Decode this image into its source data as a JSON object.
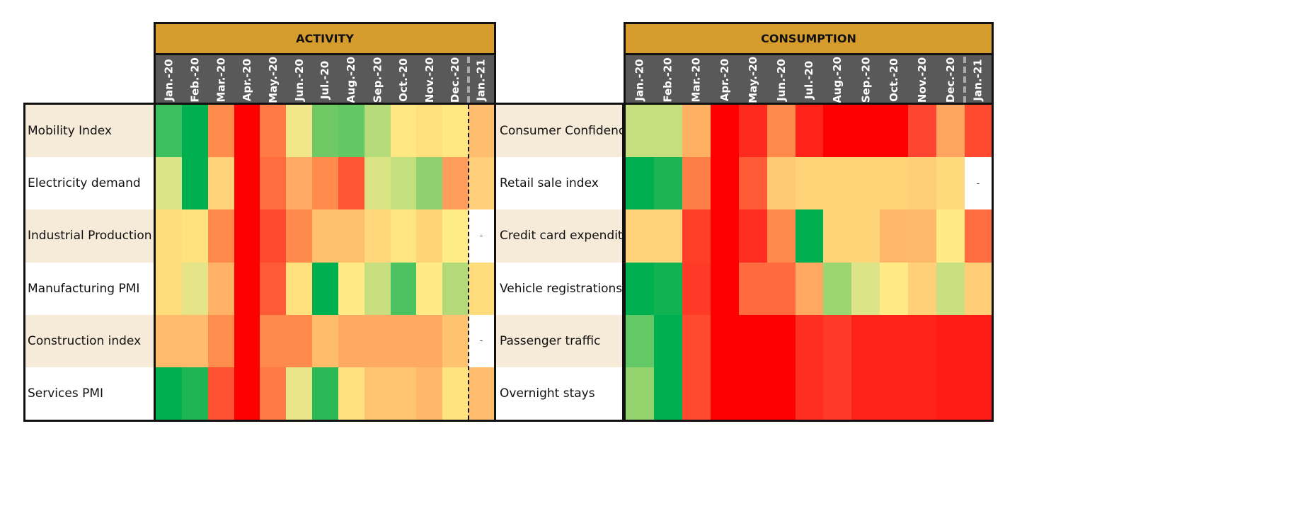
{
  "chart_data": {
    "type": "heatmap",
    "panels": [
      {
        "title": "ACTIVITY",
        "months": [
          "Jan.-20",
          "Feb.-20",
          "Mar.-20",
          "Apr.-20",
          "May.-20",
          "Jun.-20",
          "Jul.-20",
          "Aug.-20",
          "Sep.-20",
          "Oct.-20",
          "Nov.-20",
          "Dec.-20",
          "Jan.-21"
        ],
        "rows": [
          {
            "label": "Mobility Index",
            "cells": [
              "#3cbf5f",
              "#00b050",
              "#ff8b4c",
              "#ff0000",
              "#ff7a45",
              "#f1e78a",
              "#6fca66",
              "#62c863",
              "#b5dc78",
              "#ffe884",
              "#ffe07c",
              "#ffe882",
              "#ffbd6e"
            ]
          },
          {
            "label": "Electricity demand",
            "cells": [
              "#dde488",
              "#00b050",
              "#ffd27a",
              "#ff0000",
              "#ff6c40",
              "#ffab66",
              "#ff8b4c",
              "#ff5534",
              "#d9e384",
              "#c3df7e",
              "#8fd16e",
              "#ff9e5c",
              "#ffcf79"
            ]
          },
          {
            "label": "Industrial Production",
            "cells": [
              "#ffdc7c",
              "#ffe27e",
              "#ff8a4c",
              "#ff0000",
              "#ff4a30",
              "#ff8a4c",
              "#ffc06d",
              "#ffc06d",
              "#ffd77a",
              "#ffe582",
              "#ffd377",
              "#ffec86",
              "-"
            ]
          },
          {
            "label": "Manufacturing PMI",
            "cells": [
              "#ffdc7c",
              "#e5e488",
              "#ffb266",
              "#ff0000",
              "#ff5a36",
              "#ffe07d",
              "#00b050",
              "#ffea85",
              "#c8df80",
              "#4cc260",
              "#ffea85",
              "#b2da78",
              "#ffdc7c"
            ]
          },
          {
            "label": "Construction index",
            "cells": [
              "#ffba6b",
              "#ffba6b",
              "#ff8d4e",
              "#ff0000",
              "#ff8a4c",
              "#ff8a4c",
              "#ffbd6c",
              "#ffaa62",
              "#ffaa62",
              "#ffaa62",
              "#ffaa62",
              "#ffc36f",
              "-"
            ]
          },
          {
            "label": "Services PMI",
            "cells": [
              "#00b050",
              "#1fb555",
              "#ff5232",
              "#ff0000",
              "#ff7a45",
              "#e8e588",
              "#2ab956",
              "#ffe07e",
              "#ffc46f",
              "#ffc46f",
              "#ffb869",
              "#ffe37e",
              "#ffbd6d"
            ]
          }
        ]
      },
      {
        "title": "CONSUMPTION",
        "months": [
          "Jan.-20",
          "Feb.-20",
          "Mar.-20",
          "Apr.-20",
          "May.-20",
          "Jun.-20",
          "Jul.-20",
          "Aug.-20",
          "Sep.-20",
          "Oct.-20",
          "Nov.-20",
          "Dec.-20",
          "Jan.-21"
        ],
        "rows": [
          {
            "label": "Consumer Confidence",
            "cells": [
              "#c6df7e",
              "#c6df7e",
              "#ffb063",
              "#ff0000",
              "#ff2a1e",
              "#ff8a4c",
              "#ff2219",
              "#ff0000",
              "#ff0000",
              "#ff0000",
              "#ff4530",
              "#ffa55f",
              "#ff4a30"
            ]
          },
          {
            "label": "Retail sale index",
            "cells": [
              "#00b050",
              "#1db453",
              "#ff7e47",
              "#ff0000",
              "#ff5a36",
              "#ffca74",
              "#ffd278",
              "#ffd278",
              "#ffd278",
              "#ffd278",
              "#ffcf77",
              "#ffda7c",
              "-"
            ]
          },
          {
            "label": "Credit card expenditure",
            "cells": [
              "#ffd27a",
              "#ffd27a",
              "#ff3f28",
              "#ff0000",
              "#ff2e20",
              "#ff8a4c",
              "#00b050",
              "#ffd479",
              "#ffd479",
              "#ffb76a",
              "#ffb96b",
              "#ffea85",
              "#ff6c40"
            ]
          },
          {
            "label": "Vehicle registrations",
            "cells": [
              "#00b050",
              "#10b252",
              "#ff3a26",
              "#ff0000",
              "#ff6a3f",
              "#ff6a3f",
              "#ffa862",
              "#9cd672",
              "#dde487",
              "#ffea85",
              "#ffd077",
              "#c8e080",
              "#ffcd76"
            ]
          },
          {
            "label": "Passenger traffic",
            "cells": [
              "#63c866",
              "#00b050",
              "#ff4a30",
              "#ff0000",
              "#ff0000",
              "#ff0000",
              "#ff2e20",
              "#ff3a26",
              "#ff2219",
              "#ff2219",
              "#ff2219",
              "#ff1b16",
              "#ff1b16"
            ]
          },
          {
            "label": "Overnight stays",
            "cells": [
              "#95d36f",
              "#00b050",
              "#ff4a30",
              "#ff0000",
              "#ff0000",
              "#ff0000",
              "#ff2e20",
              "#ff3a26",
              "#ff2219",
              "#ff2219",
              "#ff2219",
              "#ff1b16",
              "#ff1b16"
            ]
          }
        ]
      }
    ],
    "band_colors": [
      "#f6ead8",
      "#ffffff"
    ],
    "missing_mark": "-"
  }
}
